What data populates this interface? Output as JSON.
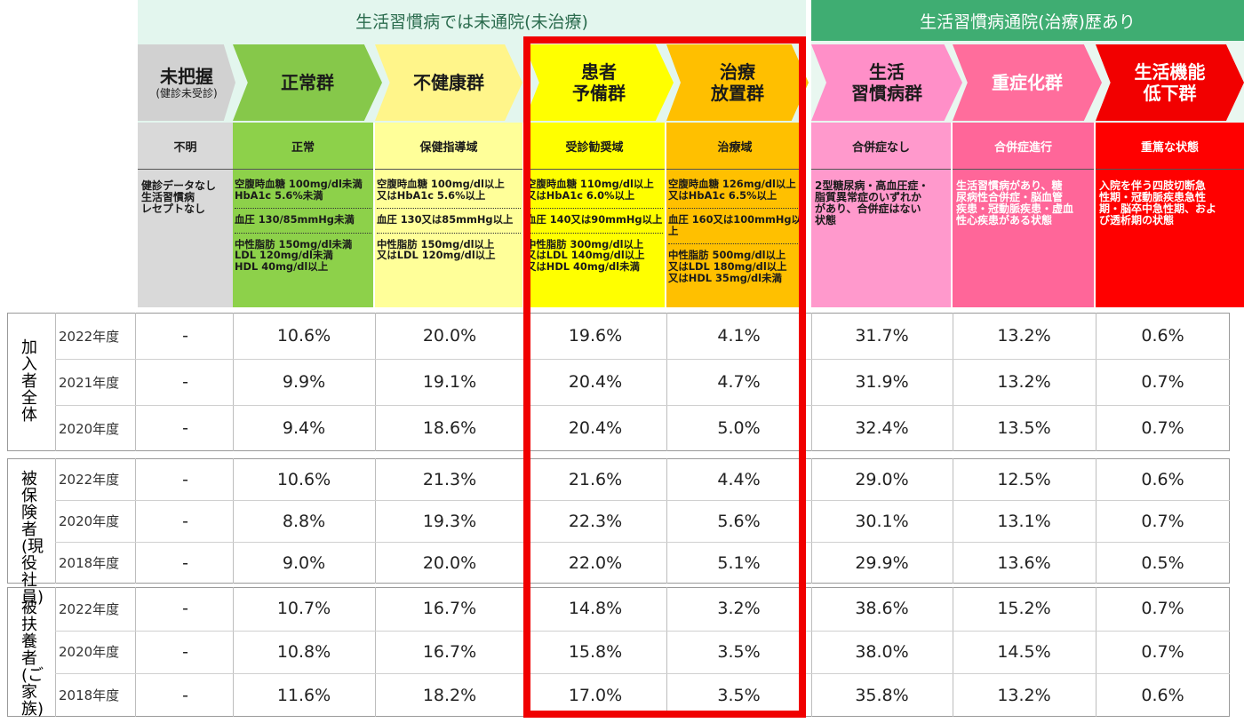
{
  "bands": {
    "untreated": "生活習慣病では未通院(未治療)",
    "treated": "生活習慣病通院(治療)歴あり"
  },
  "columns": [
    {
      "title": "未把握",
      "subtitle": "(健診未受診)",
      "level": "不明",
      "criteria": [
        "健診データなし\n生活習慣病\nレセプトなし"
      ],
      "bg": "#d9d9d9",
      "chev": "#d1d1d1",
      "fg": "#1a1a1a"
    },
    {
      "title": "正常群",
      "subtitle": "",
      "level": "正常",
      "criteria": [
        "空腹時血糖 100mg/dl未満\nHbA1c 5.6%未満",
        "血圧 130/85mmHg未満",
        "中性脂肪 150mg/dl未満\nLDL 120mg/dl未満\nHDL 40mg/dl以上"
      ],
      "bg": "#8dd14a",
      "chev": "#86c84a",
      "fg": "#1a1a1a"
    },
    {
      "title": "不健康群",
      "subtitle": "",
      "level": "保健指導域",
      "criteria": [
        "空腹時血糖 100mg/dl以上\n又はHbA1c 5.6%以上",
        "血圧 130又は85mmHg以上",
        "中性脂肪 150mg/dl以上\n又はLDL 120mg/dl以上"
      ],
      "bg": "#ffff99",
      "chev": "#fff58a",
      "fg": "#1a1a1a"
    },
    {
      "title": "患者\n予備群",
      "subtitle": "",
      "level": "受診勧奨域",
      "criteria": [
        "空腹時血糖 110mg/dl以上\n又はHbA1c 6.0%以上",
        "血圧 140又は90mmHg以上",
        "中性脂肪 300mg/dl以上\n又はLDL 140mg/dl以上\n又はHDL 40mg/dl未満"
      ],
      "bg": "#ffff00",
      "chev": "#ffff00",
      "fg": "#1a1a1a"
    },
    {
      "title": "治療\n放置群",
      "subtitle": "",
      "level": "治療域",
      "criteria": [
        "空腹時血糖 126mg/dl以上\n又はHbA1c 6.5%以上",
        "血圧 160又は100mmHg以上",
        "中性脂肪 500mg/dl以上\n又はLDL 180mg/dl以上\n又はHDL 35mg/dl未満"
      ],
      "bg": "#ffc000",
      "chev": "#ffbf00",
      "fg": "#1a1a1a"
    },
    {
      "title": "生活\n習慣病群",
      "subtitle": "",
      "level": "合併症なし",
      "criteria": [
        "2型糖尿病・高血圧症・\n脂質異常症のいずれか\nがあり、合併症はない\n状態"
      ],
      "bg": "#ff99cc",
      "chev": "#ff8fc8",
      "fg": "#1a1a1a"
    },
    {
      "title": "重症化群",
      "subtitle": "",
      "level": "合併症進行",
      "criteria": [
        "生活習慣病があり、糖\n尿病性合併症・脳血管\n疾患・冠動脈疾患・虚血\n性心疾患がある状態"
      ],
      "bg": "#ff6699",
      "chev": "#ff6d9c",
      "fg": "#ffffff"
    },
    {
      "title": "生活機能\n低下群",
      "subtitle": "",
      "level": "重篤な状態",
      "criteria": [
        "入院を伴う四肢切断急\n性期・冠動脈疾患急性\n期・脳卒中急性期、およ\nび透析期の状態"
      ],
      "bg": "#ff0000",
      "chev": "#f20000",
      "fg": "#ffffff"
    }
  ],
  "groups": [
    {
      "label": "加入者全体",
      "rows": [
        {
          "year": "2022年度",
          "values": [
            "-",
            "10.6%",
            "20.0%",
            "19.6%",
            "4.1%",
            "31.7%",
            "13.2%",
            "0.6%"
          ]
        },
        {
          "year": "2021年度",
          "values": [
            "-",
            "9.9%",
            "19.1%",
            "20.4%",
            "4.7%",
            "31.9%",
            "13.2%",
            "0.7%"
          ]
        },
        {
          "year": "2020年度",
          "values": [
            "-",
            "9.4%",
            "18.6%",
            "20.4%",
            "5.0%",
            "32.4%",
            "13.5%",
            "0.7%"
          ]
        }
      ]
    },
    {
      "label": "被保険者(現役社員)",
      "rows": [
        {
          "year": "2022年度",
          "values": [
            "-",
            "10.6%",
            "21.3%",
            "21.6%",
            "4.4%",
            "29.0%",
            "12.5%",
            "0.6%"
          ]
        },
        {
          "year": "2020年度",
          "values": [
            "-",
            "8.8%",
            "19.3%",
            "22.3%",
            "5.6%",
            "30.1%",
            "13.1%",
            "0.7%"
          ]
        },
        {
          "year": "2018年度",
          "values": [
            "-",
            "9.0%",
            "20.0%",
            "22.0%",
            "5.1%",
            "29.9%",
            "13.6%",
            "0.5%"
          ]
        }
      ]
    },
    {
      "label": "被扶養者(ご家族)",
      "rows": [
        {
          "year": "2022年度",
          "values": [
            "-",
            "10.7%",
            "16.7%",
            "14.8%",
            "3.2%",
            "38.6%",
            "15.2%",
            "0.7%"
          ]
        },
        {
          "year": "2020年度",
          "values": [
            "-",
            "10.8%",
            "16.7%",
            "15.8%",
            "3.5%",
            "38.0%",
            "14.5%",
            "0.7%"
          ]
        },
        {
          "year": "2018年度",
          "values": [
            "-",
            "11.6%",
            "18.2%",
            "17.0%",
            "3.5%",
            "35.8%",
            "13.2%",
            "0.6%"
          ]
        }
      ]
    }
  ]
}
